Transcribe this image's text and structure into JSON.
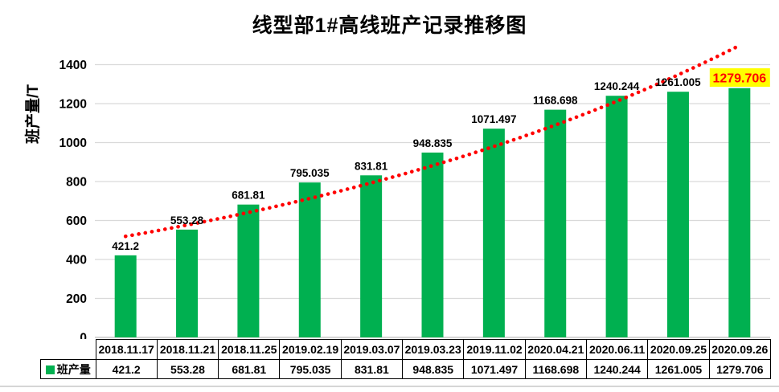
{
  "chart_data": {
    "type": "bar",
    "title": "线型部1#高线班产记录推移图",
    "ylabel": "班产量/T",
    "legend": "班产量",
    "categories": [
      "2018.11.17",
      "2018.11.21",
      "2018.11.25",
      "2019.02.19",
      "2019.03.07",
      "2019.03.23",
      "2019.11.02",
      "2020.04.21",
      "2020.06.11",
      "2020.09.25",
      "2020.09.26"
    ],
    "values": [
      421.2,
      553.28,
      681.81,
      795.035,
      831.81,
      948.835,
      1071.497,
      1168.698,
      1240.244,
      1261.005,
      1279.706
    ],
    "value_labels": [
      "421.2",
      "553.28",
      "681.81",
      "795.035",
      "831.81",
      "948.835",
      "1071.497",
      "1168.698",
      "1240.244",
      "1261.005",
      "1279.706"
    ],
    "ylim": [
      0,
      1400
    ],
    "ytick_step": 200,
    "grid": "horizontal",
    "legend_position": "table-left-of-value-row",
    "trendline": {
      "type": "exponential",
      "style": "dotted",
      "color": "#FF0000"
    },
    "highlight_last_index": 10,
    "colors": {
      "bar": "#00B050",
      "data_label": "#000000",
      "highlight_bg": "#FFFF00",
      "highlight_text": "#FF0000",
      "gridline": "#D9D9D9",
      "axis_line": "#BFBFBF",
      "table_border": "#000000",
      "background": "#FFFFFF"
    }
  }
}
